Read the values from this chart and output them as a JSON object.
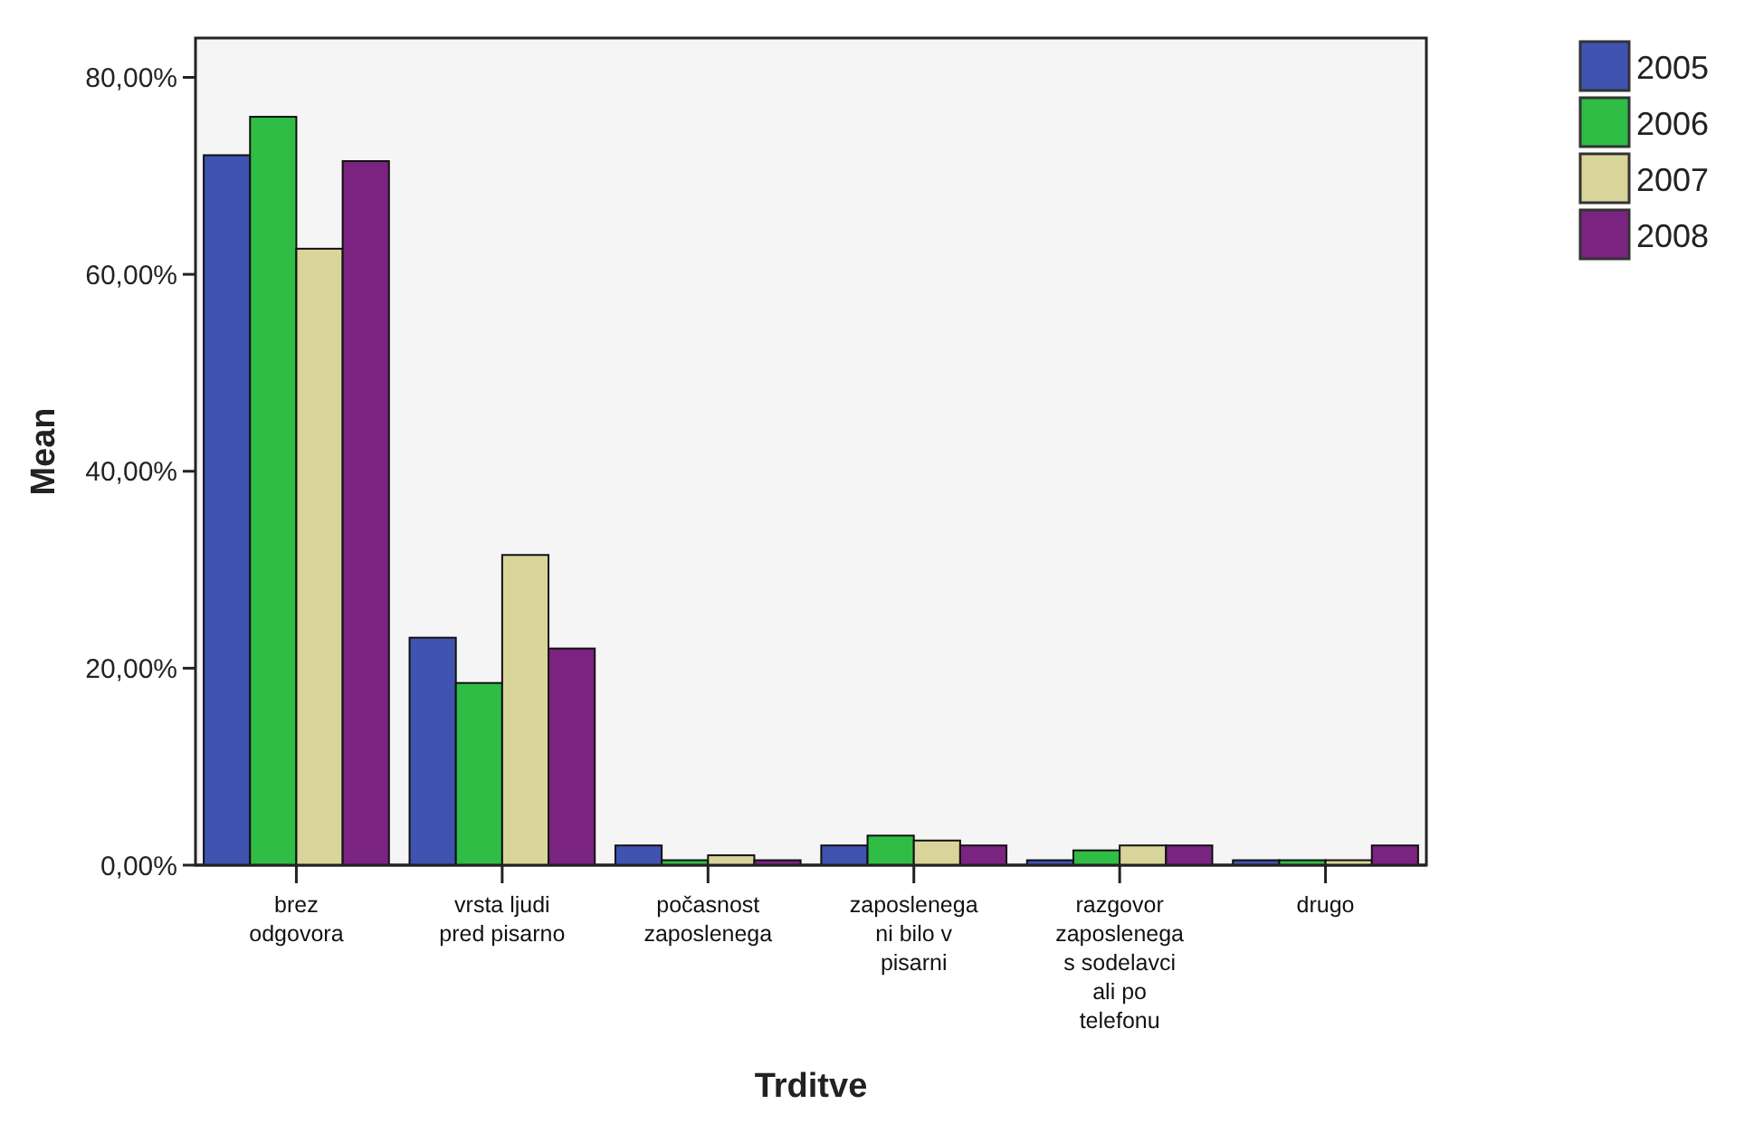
{
  "chart_data": {
    "type": "bar",
    "xlabel": "Trditve",
    "ylabel": "Mean",
    "categories": [
      "brez\nodgovora",
      "vrsta ljudi\npred pisarno",
      "počasnost\nzaposlenega",
      "zaposlenega\nni bilo v\npisarni",
      "razgovor\nzaposlenega\ns sodelavci\nali po\ntelefonu",
      "drugo"
    ],
    "series": [
      {
        "name": "2005",
        "color": "#3f53b0",
        "values": [
          72.1,
          23.1,
          2,
          2,
          0.5,
          0.5
        ]
      },
      {
        "name": "2006",
        "color": "#2fbd46",
        "values": [
          76,
          18.5,
          0.5,
          3,
          1.5,
          0.5
        ]
      },
      {
        "name": "2007",
        "color": "#d9d59a",
        "values": [
          62.6,
          31.5,
          1,
          2.5,
          2,
          0.5
        ]
      },
      {
        "name": "2008",
        "color": "#7b2380",
        "values": [
          71.5,
          22,
          0.5,
          2,
          2,
          2
        ]
      }
    ],
    "ylim": [
      0,
      84
    ],
    "yticks": [
      {
        "value": 0,
        "label": "0,00%"
      },
      {
        "value": 20,
        "label": "20,00%"
      },
      {
        "value": 40,
        "label": "40,00%"
      },
      {
        "value": 60,
        "label": "60,00%"
      },
      {
        "value": 80,
        "label": "80,00%"
      }
    ],
    "grid": false,
    "legend": "top right"
  }
}
